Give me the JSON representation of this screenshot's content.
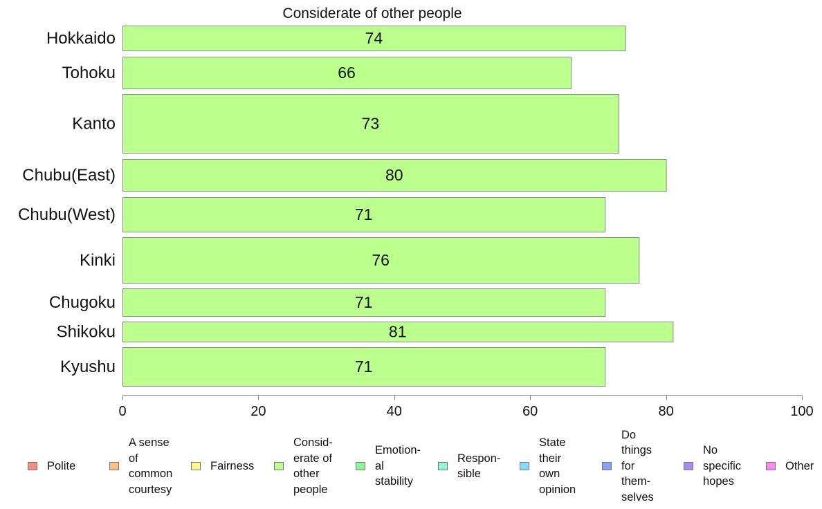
{
  "chart_data": {
    "type": "bar",
    "orientation": "horizontal",
    "title": "Considerate of other people",
    "categories": [
      "Hokkaido",
      "Tohoku",
      "Kanto",
      "Chubu(East)",
      "Chubu(West)",
      "Kinki",
      "Chugoku",
      "Shikoku",
      "Kyushu"
    ],
    "values": [
      74,
      66,
      73,
      80,
      71,
      76,
      71,
      81,
      71
    ],
    "value_labels": [
      "74",
      "66",
      "73",
      "80",
      "71",
      "76",
      "71",
      "81",
      "71"
    ],
    "bar_color": "#bbff8c",
    "bar_border_color": "#8a8a8a",
    "xlim": [
      0,
      100
    ],
    "xticks": [
      0,
      20,
      40,
      60,
      80,
      100
    ],
    "xtick_labels": [
      "0",
      "20",
      "40",
      "60",
      "80",
      "100"
    ],
    "grid": false,
    "legend_position": "bottom"
  },
  "legend": {
    "items": [
      {
        "label": "Polite",
        "color": "#f98b87"
      },
      {
        "label": "A sense\nof\ncommon\ncourtesy",
        "color": "#ffc080"
      },
      {
        "label": "Fairness",
        "color": "#fdfa8a"
      },
      {
        "label": "Consid-\nerate of\nother\npeople",
        "color": "#bbff8c"
      },
      {
        "label": "Emotion-\nal\nstability",
        "color": "#8ff59a"
      },
      {
        "label": "Respon-\nsible",
        "color": "#8ff7d8"
      },
      {
        "label": "State\ntheir\nown\nopinion",
        "color": "#86dcf2"
      },
      {
        "label": "Do\nthings\nfor\nthem-\nselves",
        "color": "#8aa0f9"
      },
      {
        "label": "No\nspecific\nhopes",
        "color": "#a98af7"
      },
      {
        "label": "Other",
        "color": "#f98af5"
      }
    ]
  }
}
